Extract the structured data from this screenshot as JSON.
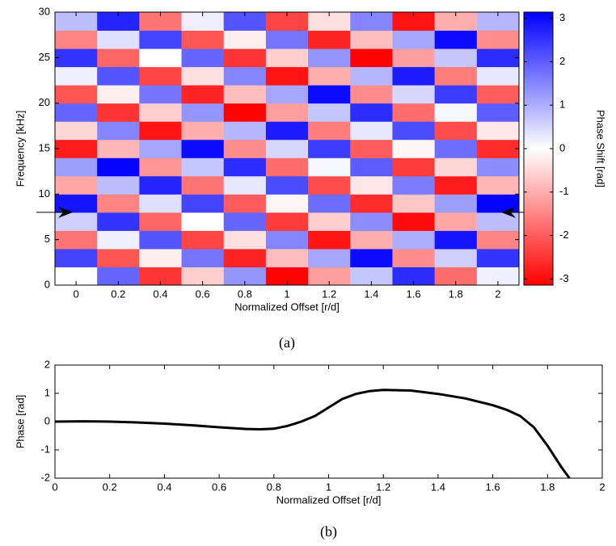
{
  "chart_data": [
    {
      "type": "heatmap",
      "panel_label": "(a)",
      "xlabel": "Normalized Offset [r/d]",
      "ylabel": "Frequency [kHz]",
      "colorbar_label": "Phase Shift [rad]",
      "x": [
        0,
        0.2,
        0.4,
        0.6,
        0.8,
        1,
        1.2,
        1.4,
        1.6,
        1.8,
        2
      ],
      "y": [
        1,
        3,
        5,
        7,
        9,
        11,
        13,
        15,
        17,
        19,
        21,
        23,
        25,
        27,
        29
      ],
      "z": [
        [
          0,
          1.9,
          -2.5,
          -0.6,
          1.3,
          -3.1,
          -1.2,
          0.7,
          2.6,
          -1.8,
          0.2
        ],
        [
          2.3,
          -2.1,
          -0.2,
          1.7,
          -2.7,
          -0.8,
          1.1,
          3.0,
          -1.4,
          0.6,
          2.5
        ],
        [
          -1.7,
          0.2,
          2.1,
          -2.3,
          -0.4,
          1.5,
          -2.9,
          -1.0,
          1.0,
          2.9,
          -1.5
        ],
        [
          0.6,
          2.5,
          -1.9,
          0,
          1.9,
          -2.4,
          -0.6,
          1.4,
          -3.0,
          -1.1,
          0.8
        ],
        [
          2.9,
          -1.5,
          0.4,
          2.3,
          -2.0,
          -0.1,
          1.8,
          -2.6,
          -0.7,
          1.2,
          3.1
        ],
        [
          -1.1,
          0.8,
          2.7,
          -1.7,
          0.3,
          2.2,
          -2.2,
          -0.3,
          1.6,
          -2.8,
          -0.9
        ],
        [
          1.2,
          3.1,
          -1.3,
          0.7,
          2.6,
          -1.8,
          0.1,
          2.0,
          -2.4,
          -0.5,
          1.4
        ],
        [
          -2.8,
          -0.9,
          1.1,
          3.0,
          -1.4,
          0.5,
          2.4,
          -2.0,
          -0.1,
          1.8,
          -2.6
        ],
        [
          -0.5,
          1.5,
          -2.9,
          -1.0,
          0.9,
          2.8,
          -1.6,
          0.3,
          2.2,
          -2.2,
          -0.3
        ],
        [
          1.9,
          -2.5,
          -0.6,
          1.3,
          -3.1,
          -1.2,
          0.7,
          2.6,
          -1.8,
          0.1,
          2.0
        ],
        [
          -2.1,
          -0.2,
          1.7,
          -2.7,
          -0.8,
          1.1,
          3.0,
          -1.4,
          0.5,
          2.4,
          -2.0
        ],
        [
          0.2,
          2.1,
          -2.3,
          -0.4,
          1.5,
          -2.9,
          -1.0,
          0.9,
          2.8,
          -1.6,
          0.3
        ],
        [
          2.5,
          -1.9,
          0,
          1.9,
          -2.5,
          -0.6,
          1.3,
          -3.1,
          -1.2,
          0.7,
          2.6
        ],
        [
          -1.5,
          0.4,
          2.3,
          -2.1,
          -0.2,
          1.7,
          -2.7,
          -0.8,
          1.1,
          3.0,
          -1.4
        ],
        [
          0.8,
          2.7,
          -1.7,
          0.2,
          2.1,
          -2.3,
          -0.4,
          1.5,
          -2.9,
          -1.0,
          0.9
        ]
      ],
      "colormap": [
        "#ff0000",
        "#ffffff",
        "#0000ff"
      ],
      "clim": [
        -3.1416,
        3.1416
      ],
      "cticks": [
        -3,
        -2,
        -1,
        0,
        1,
        2,
        3
      ],
      "xlim": [
        -0.1,
        2.1
      ],
      "ylim": [
        0,
        30
      ],
      "xticks": [
        0,
        0.2,
        0.4,
        0.6,
        0.8,
        1,
        1.2,
        1.4,
        1.6,
        1.8,
        2
      ],
      "yticks": [
        0,
        5,
        10,
        15,
        20,
        25,
        30
      ],
      "arrow_frequency": 8
    },
    {
      "type": "line",
      "panel_label": "(b)",
      "xlabel": "Normalized Offset [r/d]",
      "ylabel": "Phase [rad]",
      "color": "#000000",
      "x": [
        0,
        0.1,
        0.2,
        0.3,
        0.4,
        0.5,
        0.6,
        0.7,
        0.75,
        0.8,
        0.85,
        0.9,
        0.95,
        1.0,
        1.05,
        1.1,
        1.15,
        1.2,
        1.3,
        1.4,
        1.5,
        1.6,
        1.65,
        1.7,
        1.75,
        1.8,
        1.85,
        1.88
      ],
      "values": [
        0,
        0.01,
        0,
        -0.03,
        -0.07,
        -0.13,
        -0.2,
        -0.26,
        -0.27,
        -0.25,
        -0.15,
        0,
        0.2,
        0.5,
        0.8,
        0.98,
        1.08,
        1.12,
        1.1,
        0.98,
        0.82,
        0.58,
        0.42,
        0.2,
        -0.2,
        -0.85,
        -1.6,
        -2
      ],
      "xlim": [
        0,
        2
      ],
      "ylim": [
        -2,
        2
      ],
      "xticks": [
        0,
        0.2,
        0.4,
        0.6,
        0.8,
        1,
        1.2,
        1.4,
        1.6,
        1.8,
        2
      ],
      "yticks": [
        -2,
        -1,
        0,
        1,
        2
      ]
    }
  ]
}
